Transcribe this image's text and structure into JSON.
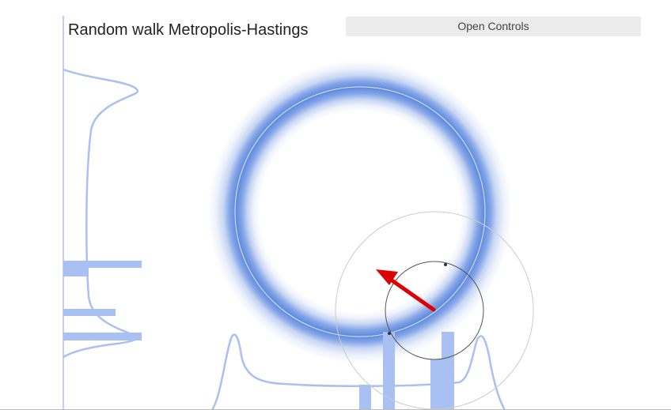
{
  "title": "Random walk Metropolis-Hastings",
  "controls": {
    "open_label": "Open Controls"
  },
  "colors": {
    "background": "#ffffff",
    "density": "#3a6fd8",
    "marginal": "#aac0f0",
    "histogram": "#a9c0f3",
    "proposal_arrow": "#dd0000",
    "proposal_circle_outer": "#cccccc",
    "proposal_circle_inner": "#555555",
    "sample_point": "#333333"
  },
  "icons": {
    "proposal": "arrow-icon"
  }
}
